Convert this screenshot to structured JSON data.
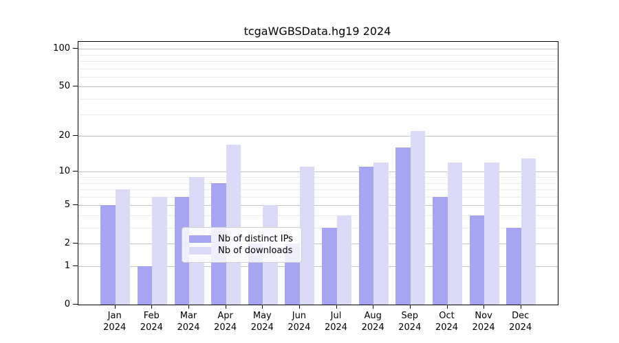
{
  "chart_data": {
    "type": "bar",
    "title": "tcgaWGBSData.hg19 2024",
    "categories": [
      "Jan 2024",
      "Feb 2024",
      "Mar 2024",
      "Apr 2024",
      "May 2024",
      "Jun 2024",
      "Jul 2024",
      "Aug 2024",
      "Sep 2024",
      "Oct 2024",
      "Nov 2024",
      "Dec 2024"
    ],
    "series": [
      {
        "name": "Nb of distinct IPs",
        "color": "#a5a5f1",
        "values": [
          5,
          1,
          6,
          8,
          2,
          2,
          3,
          11,
          16,
          6,
          4,
          3
        ]
      },
      {
        "name": "Nb of downloads",
        "color": "#dbdbf7",
        "values": [
          7,
          6,
          9,
          17,
          5,
          11,
          4,
          12,
          22,
          12,
          12,
          13
        ]
      }
    ],
    "y_scale": "log1p",
    "yticks": [
      0,
      1,
      2,
      5,
      10,
      20,
      50,
      100
    ],
    "minor_yticks": [
      3,
      4,
      6,
      7,
      8,
      9,
      30,
      40,
      60,
      70,
      80,
      90
    ],
    "ylim": [
      0,
      115
    ],
    "xlabel": "",
    "ylabel": "",
    "grid": "horizontal",
    "legend_position": "inside-lower-center",
    "colors": {
      "axis": "#000000",
      "grid_major": "#c2c2c2",
      "grid_minor": "#ececec",
      "background": "#ffffff"
    }
  }
}
